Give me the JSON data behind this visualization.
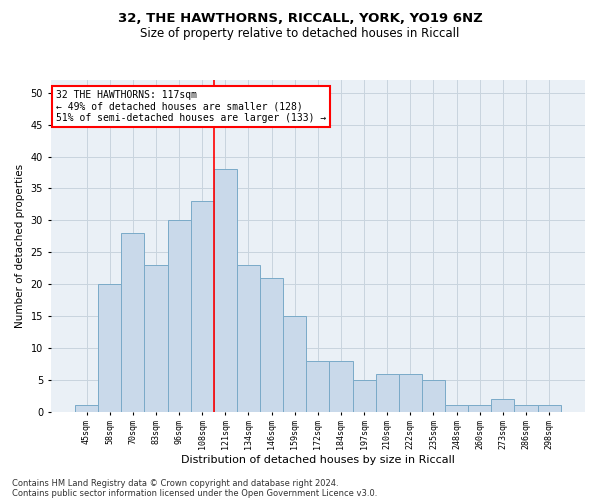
{
  "title1": "32, THE HAWTHORNS, RICCALL, YORK, YO19 6NZ",
  "title2": "Size of property relative to detached houses in Riccall",
  "xlabel": "Distribution of detached houses by size in Riccall",
  "ylabel": "Number of detached properties",
  "categories": [
    "45sqm",
    "58sqm",
    "70sqm",
    "83sqm",
    "96sqm",
    "108sqm",
    "121sqm",
    "134sqm",
    "146sqm",
    "159sqm",
    "172sqm",
    "184sqm",
    "197sqm",
    "210sqm",
    "222sqm",
    "235sqm",
    "248sqm",
    "260sqm",
    "273sqm",
    "286sqm",
    "298sqm"
  ],
  "values": [
    1,
    20,
    28,
    23,
    30,
    33,
    38,
    23,
    21,
    15,
    8,
    8,
    5,
    6,
    6,
    5,
    1,
    1,
    2,
    1,
    1
  ],
  "bar_color": "#c9d9ea",
  "bar_edge_color": "#7aaac8",
  "vline_color": "red",
  "ylim": [
    0,
    52
  ],
  "yticks": [
    0,
    5,
    10,
    15,
    20,
    25,
    30,
    35,
    40,
    45,
    50
  ],
  "annotation_line1": "32 THE HAWTHORNS: 117sqm",
  "annotation_line2": "← 49% of detached houses are smaller (128)",
  "annotation_line3": "51% of semi-detached houses are larger (133) →",
  "annotation_box_color": "white",
  "annotation_box_edge": "red",
  "footer1": "Contains HM Land Registry data © Crown copyright and database right 2024.",
  "footer2": "Contains public sector information licensed under the Open Government Licence v3.0.",
  "grid_color": "#c8d4de",
  "background_color": "#eaf0f6",
  "title1_fontsize": 9.5,
  "title2_fontsize": 8.5,
  "xlabel_fontsize": 8,
  "ylabel_fontsize": 7.5,
  "xtick_fontsize": 6,
  "ytick_fontsize": 7,
  "annot_fontsize": 7,
  "footer_fontsize": 6
}
